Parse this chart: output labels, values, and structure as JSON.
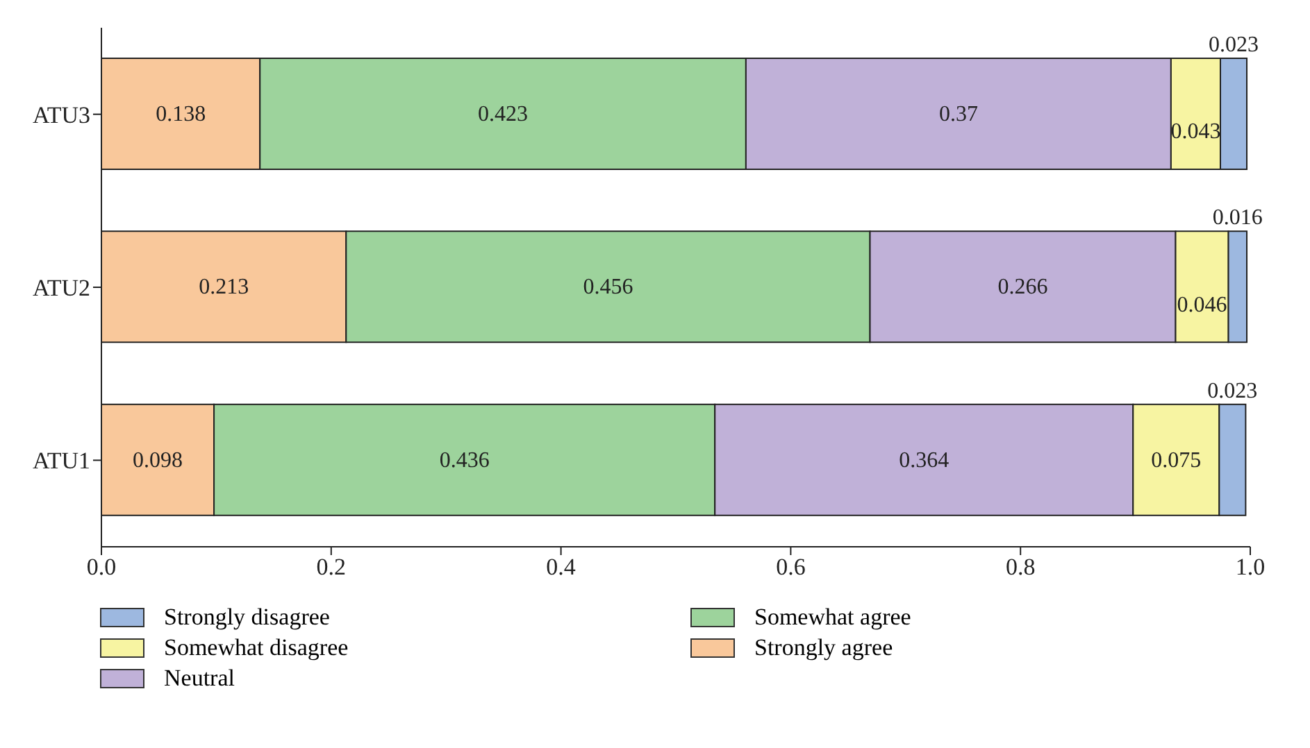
{
  "chart_data": {
    "type": "bar",
    "orientation": "horizontal",
    "stacked": true,
    "categories": [
      "ATU3",
      "ATU2",
      "ATU1"
    ],
    "series": [
      {
        "name": "Strongly agree",
        "color": "#f9c89b",
        "values": [
          0.138,
          0.213,
          0.098
        ]
      },
      {
        "name": "Somewhat agree",
        "color": "#9dd39c",
        "values": [
          0.423,
          0.456,
          0.436
        ]
      },
      {
        "name": "Neutral",
        "color": "#c0b1d8",
        "values": [
          0.37,
          0.266,
          0.364
        ]
      },
      {
        "name": "Somewhat disagree",
        "color": "#f7f4a2",
        "values": [
          0.043,
          0.046,
          0.075
        ]
      },
      {
        "name": "Strongly disagree",
        "color": "#9db8e0",
        "values": [
          0.023,
          0.016,
          0.023
        ]
      }
    ],
    "xlim": [
      0,
      1
    ],
    "xticks": [
      {
        "value": 0,
        "label": "0.0"
      },
      0.2,
      0.4,
      0.6,
      0.8,
      {
        "value": 1,
        "label": "1.0"
      }
    ],
    "data_labels": true,
    "legend": "bottom",
    "grid": false
  }
}
